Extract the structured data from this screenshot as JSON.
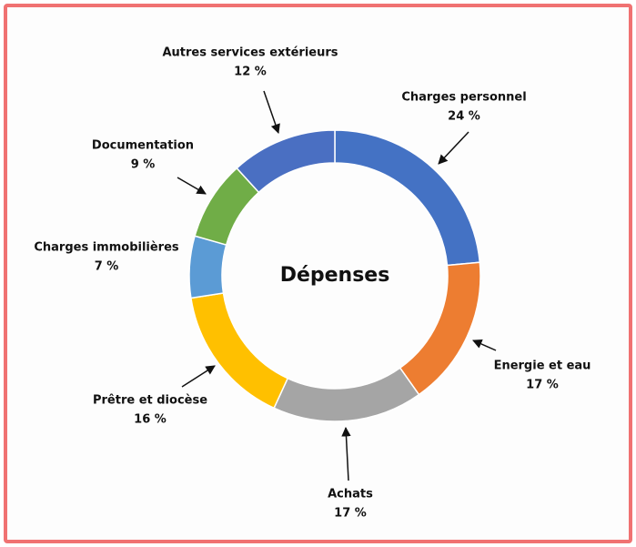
{
  "chart_data": {
    "type": "donut",
    "title": "Dépenses",
    "categories": [
      "Charges personnel",
      "Energie et eau",
      "Achats",
      "Prêtre et diocèse",
      "Charges immobilières",
      "Documentation",
      "Autres services extérieurs"
    ],
    "values": [
      24,
      17,
      17,
      16,
      7,
      9,
      12
    ],
    "value_labels": [
      "24 %",
      "17 %",
      "17 %",
      "16 %",
      "7 %",
      "9 %",
      "12 %"
    ],
    "colors": [
      "#4472c4",
      "#ed7d31",
      "#a5a5a5",
      "#ffc000",
      "#5b9bd5",
      "#70ad47",
      "#4a6fc2"
    ]
  }
}
